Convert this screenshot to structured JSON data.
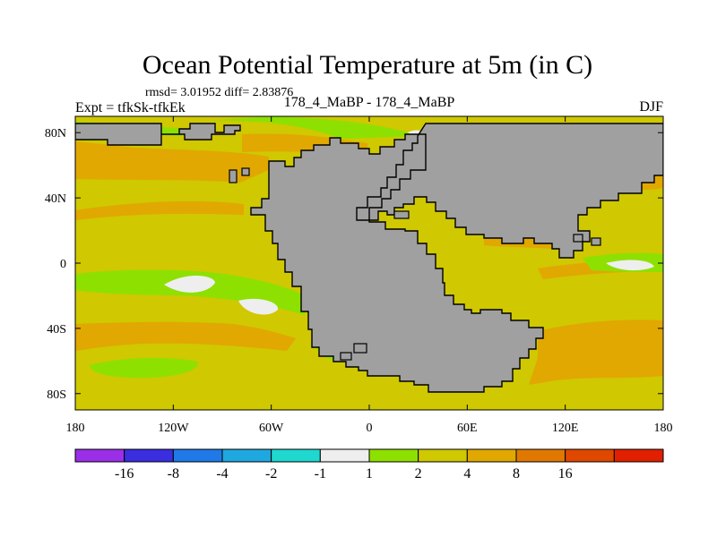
{
  "chart_data": {
    "type": "heatmap",
    "title": "Ocean Potential Temperature at 5m (in C)",
    "subtitle": "rmsd= 3.01952 diff= 2.83876",
    "experiment": "Expt = tfkSk-tfkEk",
    "comparison": "178_4_MaBP - 178_4_MaBP",
    "season": "DJF",
    "xlim": [
      -180,
      180
    ],
    "ylim": [
      -90,
      90
    ],
    "x_ticks": [
      {
        "value": -180,
        "label": "180"
      },
      {
        "value": -120,
        "label": "120W"
      },
      {
        "value": -60,
        "label": "60W"
      },
      {
        "value": 0,
        "label": "0"
      },
      {
        "value": 60,
        "label": "60E"
      },
      {
        "value": 120,
        "label": "120E"
      },
      {
        "value": 180,
        "label": "180"
      }
    ],
    "y_ticks": [
      {
        "value": 80,
        "label": "80N"
      },
      {
        "value": 40,
        "label": "40N"
      },
      {
        "value": 0,
        "label": "0"
      },
      {
        "value": -40,
        "label": "40S"
      },
      {
        "value": -80,
        "label": "80S"
      }
    ],
    "colorbar": {
      "colors": [
        "#9b2fe8",
        "#3a2ee0",
        "#1f7ae8",
        "#1fa8e0",
        "#1fd8d0",
        "#eeeeee",
        "#8ee000",
        "#d0c800",
        "#e0a800",
        "#e07800",
        "#e04800",
        "#e02000"
      ],
      "labels": [
        "-16",
        "-8",
        "-4",
        "-2",
        "-1",
        "1",
        "2",
        "4",
        "8",
        "16"
      ]
    },
    "land_color": "#a0a0a0"
  }
}
